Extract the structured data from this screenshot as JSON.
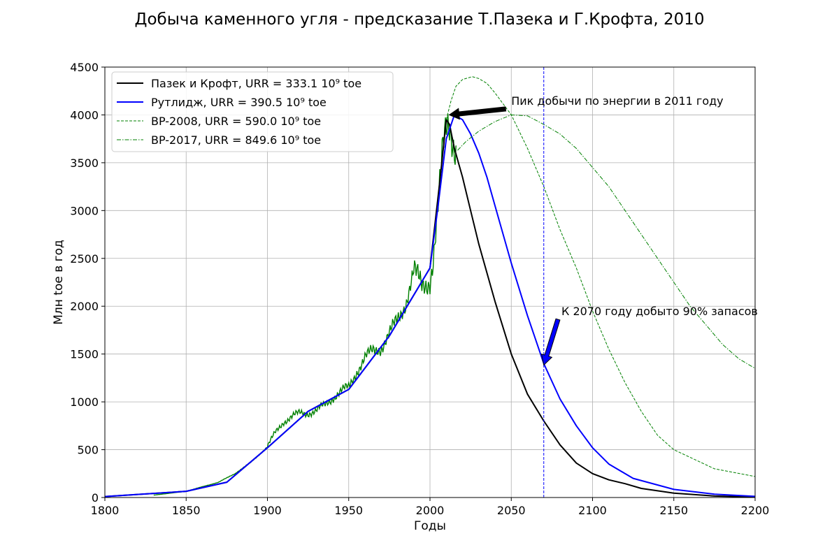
{
  "chart_data": {
    "type": "line",
    "title": "Добыча каменного угля - предсказание Т.Пазека и Г.Крофта, 2010",
    "xlabel": "Годы",
    "ylabel": "Млн toe в год",
    "xlim": [
      1800,
      2200
    ],
    "ylim": [
      0,
      4500
    ],
    "x_ticks": [
      1800,
      1850,
      1900,
      1950,
      2000,
      2050,
      2100,
      2150,
      2200
    ],
    "y_ticks": [
      0,
      500,
      1000,
      1500,
      2000,
      2500,
      3000,
      3500,
      4000,
      4500
    ],
    "grid": true,
    "legend_position": "top-left",
    "series": [
      {
        "name": "Пазек и Крофт, URR = 333.1 10⁹ toe",
        "color": "#000000",
        "style": "solid",
        "x": [
          1800,
          1850,
          1875,
          1900,
          1925,
          1950,
          1975,
          2000,
          2006,
          2010,
          2012,
          2015,
          2020,
          2025,
          2030,
          2040,
          2050,
          2060,
          2070,
          2080,
          2090,
          2100,
          2110,
          2120,
          2130,
          2150,
          2175,
          2200
        ],
        "y": [
          10,
          65,
          160,
          520,
          900,
          1130,
          1690,
          2400,
          3300,
          3950,
          3900,
          3650,
          3350,
          3000,
          2650,
          2050,
          1500,
          1080,
          800,
          550,
          360,
          250,
          185,
          145,
          95,
          45,
          15,
          5
        ]
      },
      {
        "name": "Рутлидж, URR = 390.5 10⁹ toe",
        "color": "#0000ff",
        "style": "solid",
        "x": [
          1800,
          1850,
          1875,
          1900,
          1925,
          1950,
          1975,
          2000,
          2005,
          2010,
          2015,
          2020,
          2025,
          2030,
          2035,
          2040,
          2050,
          2060,
          2070,
          2080,
          2090,
          2100,
          2110,
          2125,
          2150,
          2175,
          2200
        ],
        "y": [
          10,
          65,
          160,
          520,
          900,
          1130,
          1690,
          2400,
          3050,
          3750,
          4000,
          3950,
          3800,
          3600,
          3350,
          3050,
          2450,
          1900,
          1400,
          1030,
          750,
          520,
          350,
          200,
          85,
          35,
          12
        ]
      },
      {
        "name": "BP-2008, URR = 590.0 10⁹ toe",
        "color": "#008000",
        "style": "dashed",
        "x": [
          2010,
          2013,
          2016,
          2020,
          2026,
          2030,
          2035,
          2040,
          2050,
          2060,
          2070,
          2080,
          2090,
          2100,
          2110,
          2120,
          2130,
          2140,
          2150,
          2175,
          2200
        ],
        "y": [
          3950,
          4150,
          4300,
          4370,
          4400,
          4380,
          4330,
          4230,
          4000,
          3650,
          3250,
          2800,
          2400,
          1950,
          1550,
          1200,
          900,
          650,
          500,
          300,
          220
        ]
      },
      {
        "name": "BP-2017, URR = 849.6 10⁹ toe",
        "color": "#008000",
        "style": "dashdot",
        "x": [
          2017,
          2022,
          2030,
          2040,
          2050,
          2060,
          2070,
          2080,
          2090,
          2100,
          2110,
          2120,
          2130,
          2140,
          2150,
          2160,
          2170,
          2180,
          2190,
          2200
        ],
        "y": [
          3630,
          3720,
          3830,
          3930,
          4000,
          3990,
          3900,
          3800,
          3650,
          3450,
          3250,
          3000,
          2750,
          2500,
          2250,
          2000,
          1800,
          1600,
          1450,
          1350
        ]
      }
    ],
    "historical": {
      "color": "#008000",
      "x": [
        1830,
        1850,
        1870,
        1880,
        1890,
        1900,
        1905,
        1910,
        1920,
        1930,
        1935,
        1940,
        1945,
        1950,
        1955,
        1960,
        1965,
        1970,
        1975,
        1980,
        1985,
        1990,
        1995,
        2000,
        2002,
        2005,
        2008,
        2010,
        2012,
        2014,
        2016
      ],
      "y": [
        25,
        65,
        160,
        250,
        370,
        530,
        680,
        800,
        880,
        900,
        960,
        1050,
        1100,
        1150,
        1330,
        1450,
        1530,
        1580,
        1700,
        1850,
        2050,
        2350,
        2200,
        2300,
        2500,
        3000,
        3600,
        3850,
        3950,
        3800,
        3680
      ]
    },
    "reference_line": {
      "x": 2070,
      "color": "#0000ff",
      "style": "dashed"
    },
    "annotations": [
      {
        "text": "Пик добычи по энергии в 2011 году",
        "text_x": 2050,
        "text_y": 4150,
        "arrow_to_x": 2011,
        "arrow_to_y": 4000
      },
      {
        "text": "К 2070 году добыто 90% запасов",
        "text_x": 2080,
        "text_y": 1950,
        "arrow_to_x": 2070,
        "arrow_to_y": 1400
      }
    ]
  }
}
